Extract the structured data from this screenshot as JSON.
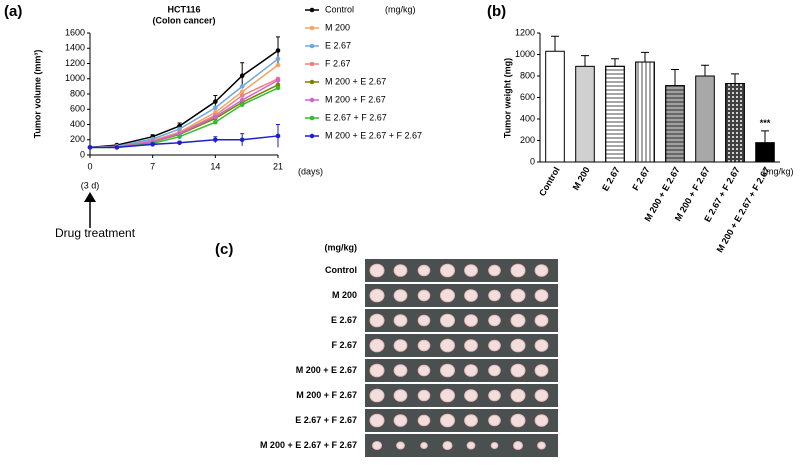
{
  "chart_data": [
    {
      "type": "line",
      "panel_label": "(a)",
      "title": "HCT116",
      "subtitle": "(Colon cancer)",
      "y_label": "Tumor volume (mm³)",
      "x_label": "(days)",
      "legend_unit": "(mg/kg)",
      "annotations": [
        "(3 d)",
        "Drug treatment"
      ],
      "x": [
        0,
        3,
        7,
        10,
        14,
        17,
        21
      ],
      "xlim": [
        0,
        21
      ],
      "xticks": [
        0,
        7,
        14,
        21
      ],
      "ylim": [
        0,
        1600
      ],
      "yticks": [
        0,
        200,
        400,
        600,
        800,
        1000,
        1200,
        1400,
        1600
      ],
      "series": [
        {
          "name": "Control",
          "color": "#000000",
          "values": [
            100,
            130,
            240,
            380,
            700,
            1040,
            1370
          ],
          "errors": [
            10,
            15,
            25,
            40,
            80,
            170,
            180
          ]
        },
        {
          "name": "M 200",
          "color": "#f4a460",
          "values": [
            100,
            110,
            190,
            300,
            560,
            830,
            1180
          ]
        },
        {
          "name": "E 2.67",
          "color": "#6fa8dc",
          "values": [
            100,
            115,
            210,
            340,
            620,
            900,
            1260
          ]
        },
        {
          "name": "F 2.67",
          "color": "#f08080",
          "values": [
            100,
            110,
            180,
            290,
            520,
            780,
            1000
          ]
        },
        {
          "name": "M 200 + E 2.67",
          "color": "#808000",
          "values": [
            100,
            100,
            170,
            270,
            480,
            690,
            920
          ]
        },
        {
          "name": "M 200 + F 2.67",
          "color": "#cc66cc",
          "values": [
            100,
            105,
            175,
            280,
            500,
            720,
            980
          ]
        },
        {
          "name": "E 2.67 + F 2.67",
          "color": "#33bb33",
          "values": [
            100,
            100,
            150,
            240,
            430,
            660,
            880
          ]
        },
        {
          "name": "M 200 + E 2.67 + F 2.67",
          "color": "#1f1fcc",
          "values": [
            100,
            100,
            140,
            160,
            200,
            200,
            250
          ],
          "errors": [
            10,
            10,
            15,
            20,
            40,
            80,
            150
          ]
        }
      ]
    },
    {
      "type": "bar",
      "panel_label": "(b)",
      "y_label": "Tumor weight (mg)",
      "x_unit": "(mg/kg)",
      "annotation": "***",
      "categories": [
        "Control",
        "M 200",
        "E 2.67",
        "F 2.67",
        "M 200 + E 2.67",
        "M 200 + F 2.67",
        "E 2.67 + F 2.67",
        "M 200 + E 2.67 + F 2.67"
      ],
      "values": [
        1030,
        890,
        890,
        930,
        710,
        800,
        730,
        180
      ],
      "errors": [
        140,
        100,
        70,
        90,
        150,
        100,
        90,
        110
      ],
      "colors": [
        "#ffffff",
        "#d0d0d0",
        "#ffffff",
        "#ffffff",
        "#a0a0a0",
        "#a8a8a8",
        "#606060",
        "#000000"
      ],
      "patterns": [
        "none",
        "none",
        "horizontal",
        "vertical",
        "horizontal",
        "none",
        "grid",
        "none"
      ],
      "ylim": [
        0,
        1200
      ],
      "yticks": [
        0,
        200,
        400,
        600,
        800,
        1000,
        1200
      ]
    }
  ],
  "photo_panel": {
    "panel_label": "(c)",
    "unit": "(mg/kg)",
    "rows": [
      "Control",
      "M 200",
      "E 2.67",
      "F 2.67",
      "M 200 + E 2.67",
      "M 200 + F 2.67",
      "E 2.67 + F 2.67",
      "M 200 + E 2.67 + F 2.67"
    ]
  }
}
